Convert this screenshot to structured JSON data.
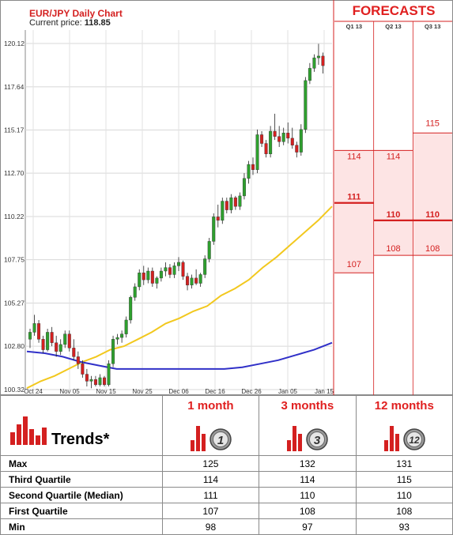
{
  "chart": {
    "title": "EUR/JPY Daily Chart",
    "price_label": "Current price:",
    "price_value": "118.85"
  },
  "forecasts": {
    "title": "FORECASTS",
    "columns": [
      "Q1 13",
      "Q2 13",
      "Q3 13"
    ]
  },
  "trends": {
    "label": "Trends*",
    "periods": [
      {
        "label": "1 month",
        "badge": "1"
      },
      {
        "label": "3 months",
        "badge": "3"
      },
      {
        "label": "12 months",
        "badge": "12"
      }
    ],
    "rows": [
      {
        "label": "Max",
        "values": [
          "125",
          "132",
          "131"
        ]
      },
      {
        "label": "Third Quartile",
        "values": [
          "114",
          "114",
          "115"
        ]
      },
      {
        "label": "Second Quartile (Median)",
        "values": [
          "111",
          "110",
          "110"
        ]
      },
      {
        "label": "First Quartile",
        "values": [
          "107",
          "108",
          "108"
        ]
      },
      {
        "label": "Min",
        "values": [
          "98",
          "97",
          "93"
        ]
      }
    ]
  },
  "colors": {
    "up": "#2ea02e",
    "down": "#d42020",
    "ma_short": "#f2c81e",
    "ma_long": "#3030c8",
    "forecast_red": "#d42020",
    "forecast_fill": "#fde4e4"
  },
  "chart_data": [
    {
      "type": "candlestick",
      "title": "EUR/JPY Daily Chart",
      "ylim": [
        100.32,
        120.12
      ],
      "y_ticks": [
        100.32,
        102.8,
        105.27,
        107.75,
        110.22,
        112.7,
        115.17,
        117.64,
        120.12
      ],
      "x_ticks": [
        "Oct 24",
        "Nov 05",
        "Nov 15",
        "Nov 25",
        "Dec 06",
        "Dec 16",
        "Dec 26",
        "Jan 05",
        "Jan 15"
      ],
      "candles": [
        [
          103.2,
          103.8,
          102.7,
          103.6
        ],
        [
          103.6,
          104.6,
          103.4,
          104.1
        ],
        [
          104.1,
          104.3,
          103.0,
          103.2
        ],
        [
          103.2,
          103.4,
          102.4,
          102.6
        ],
        [
          102.6,
          103.8,
          102.5,
          103.6
        ],
        [
          103.6,
          103.9,
          102.8,
          103.0
        ],
        [
          103.0,
          103.4,
          102.2,
          102.5
        ],
        [
          102.5,
          103.2,
          102.3,
          102.9
        ],
        [
          102.9,
          103.7,
          102.7,
          103.5
        ],
        [
          103.5,
          103.7,
          102.5,
          102.7
        ],
        [
          102.7,
          103.2,
          102.0,
          102.2
        ],
        [
          102.2,
          102.5,
          101.5,
          101.8
        ],
        [
          101.8,
          102.0,
          101.0,
          101.2
        ],
        [
          101.2,
          101.5,
          100.5,
          100.8
        ],
        [
          100.8,
          101.1,
          100.4,
          100.9
        ],
        [
          100.9,
          101.1,
          100.5,
          100.6
        ],
        [
          100.6,
          101.2,
          100.5,
          101.0
        ],
        [
          101.0,
          101.1,
          100.5,
          100.6
        ],
        [
          100.6,
          102.0,
          100.5,
          101.8
        ],
        [
          101.8,
          103.4,
          101.6,
          103.2
        ],
        [
          103.2,
          103.5,
          102.9,
          103.3
        ],
        [
          103.3,
          103.7,
          103.0,
          103.5
        ],
        [
          103.5,
          104.5,
          103.3,
          104.3
        ],
        [
          104.3,
          105.7,
          104.1,
          105.6
        ],
        [
          105.6,
          106.4,
          105.4,
          106.2
        ],
        [
          106.2,
          107.2,
          106.0,
          107.0
        ],
        [
          107.0,
          107.4,
          106.3,
          106.6
        ],
        [
          106.6,
          107.3,
          106.4,
          107.1
        ],
        [
          107.1,
          107.3,
          106.2,
          106.4
        ],
        [
          106.4,
          106.8,
          106.1,
          106.7
        ],
        [
          106.7,
          107.3,
          106.5,
          107.1
        ],
        [
          107.1,
          107.6,
          106.8,
          107.3
        ],
        [
          107.3,
          107.5,
          106.7,
          106.9
        ],
        [
          106.9,
          107.6,
          106.7,
          107.4
        ],
        [
          107.4,
          107.9,
          107.1,
          107.6
        ],
        [
          107.6,
          107.7,
          106.6,
          106.8
        ],
        [
          106.8,
          107.0,
          106.0,
          106.3
        ],
        [
          106.3,
          106.9,
          106.1,
          106.7
        ],
        [
          106.7,
          107.2,
          106.3,
          106.4
        ],
        [
          106.4,
          107.0,
          106.2,
          106.9
        ],
        [
          106.9,
          108.0,
          106.7,
          107.8
        ],
        [
          107.8,
          109.0,
          107.6,
          108.8
        ],
        [
          108.8,
          110.4,
          108.6,
          110.2
        ],
        [
          110.2,
          110.9,
          109.6,
          110.0
        ],
        [
          110.0,
          111.3,
          109.8,
          111.1
        ],
        [
          111.1,
          111.3,
          110.4,
          110.6
        ],
        [
          110.6,
          111.5,
          110.4,
          111.3
        ],
        [
          111.3,
          111.4,
          110.6,
          110.8
        ],
        [
          110.8,
          111.6,
          110.6,
          111.4
        ],
        [
          111.4,
          112.7,
          111.2,
          112.4
        ],
        [
          112.4,
          113.4,
          112.1,
          113.2
        ],
        [
          113.2,
          113.6,
          112.6,
          112.9
        ],
        [
          112.9,
          115.2,
          112.7,
          114.9
        ],
        [
          114.9,
          115.1,
          114.2,
          114.4
        ],
        [
          114.4,
          114.6,
          113.6,
          113.8
        ],
        [
          113.8,
          115.4,
          113.6,
          115.1
        ],
        [
          115.1,
          116.1,
          114.6,
          114.8
        ],
        [
          114.8,
          115.4,
          114.2,
          114.5
        ],
        [
          114.5,
          115.3,
          114.3,
          115.0
        ],
        [
          115.0,
          115.6,
          114.4,
          114.7
        ],
        [
          114.7,
          115.3,
          114.1,
          114.3
        ],
        [
          114.3,
          114.5,
          113.6,
          113.9
        ],
        [
          113.9,
          115.5,
          113.7,
          115.2
        ],
        [
          115.2,
          118.2,
          115.0,
          118.0
        ],
        [
          118.0,
          119.0,
          117.8,
          118.7
        ],
        [
          118.7,
          119.5,
          118.5,
          119.3
        ],
        [
          119.3,
          120.1,
          118.9,
          119.4
        ],
        [
          119.4,
          119.6,
          118.4,
          118.85
        ]
      ],
      "ma_short": [
        100.4,
        100.8,
        101.1,
        101.5,
        101.9,
        102.2,
        102.6,
        102.8,
        103.2,
        103.6,
        104.1,
        104.4,
        104.8,
        105.1,
        105.7,
        106.1,
        106.6,
        107.3,
        107.9,
        108.6,
        109.3,
        110.0,
        110.8
      ],
      "ma_long": [
        102.5,
        102.4,
        102.2,
        101.9,
        101.7,
        101.5,
        101.5,
        101.5,
        101.5,
        101.5,
        101.5,
        101.5,
        101.6,
        101.8,
        102.0,
        102.3,
        102.6,
        103.0
      ]
    },
    {
      "type": "range",
      "title": "FORECASTS",
      "categories": [
        "Q1 13",
        "Q2 13",
        "Q3 13"
      ],
      "series": [
        {
          "name": "Third Quartile",
          "values": [
            114,
            114,
            115
          ]
        },
        {
          "name": "Median",
          "values": [
            111,
            110,
            110
          ]
        },
        {
          "name": "First Quartile",
          "values": [
            107,
            108,
            108
          ]
        }
      ]
    }
  ]
}
